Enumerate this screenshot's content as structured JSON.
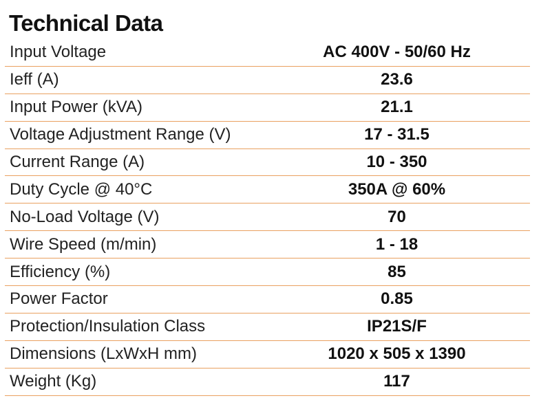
{
  "title": "Technical Data",
  "rows": [
    {
      "label": "Input Voltage",
      "value": "AC 400V - 50/60 Hz"
    },
    {
      "label": "Ieff (A)",
      "value": "23.6"
    },
    {
      "label": "Input Power (kVA)",
      "value": "21.1"
    },
    {
      "label": "Voltage Adjustment Range (V)",
      "value": "17 - 31.5"
    },
    {
      "label": "Current Range (A)",
      "value": "10 - 350"
    },
    {
      "label": "Duty Cycle @ 40°C",
      "value": "350A @ 60%"
    },
    {
      "label": "No-Load Voltage (V)",
      "value": "70"
    },
    {
      "label": "Wire Speed (m/min)",
      "value": "1 - 18"
    },
    {
      "label": "Efficiency (%)",
      "value": "85"
    },
    {
      "label": "Power Factor",
      "value": "0.85"
    },
    {
      "label": "Protection/Insulation Class",
      "value": "IP21S/F"
    },
    {
      "label": "Dimensions (LxWxH mm)",
      "value": "1020 x 505 x 1390"
    },
    {
      "label": "Weight (Kg)",
      "value": "117"
    }
  ],
  "colors": {
    "divider": "#e9a05e",
    "text": "#111111"
  }
}
